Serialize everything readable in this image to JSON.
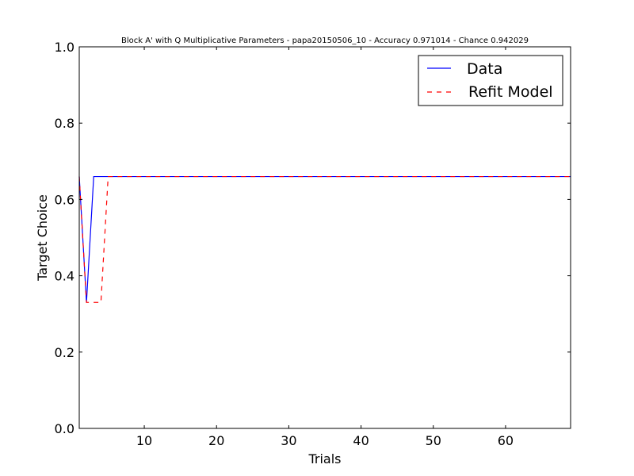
{
  "chart_data": {
    "type": "line",
    "title": "Block A' with Q Multiplicative Parameters - papa20150506_10 - Accuracy 0.971014 - Chance 0.942029",
    "xlabel": "Trials",
    "ylabel": "Target Choice",
    "xlim": [
      1,
      69
    ],
    "ylim": [
      0.0,
      1.0
    ],
    "x_ticks": [
      10,
      20,
      30,
      40,
      50,
      60
    ],
    "x_tick_labels": [
      "10",
      "20",
      "30",
      "40",
      "50",
      "60"
    ],
    "y_ticks": [
      0.0,
      0.2,
      0.4,
      0.6,
      0.8,
      1.0
    ],
    "y_tick_labels": [
      "0.0",
      "0.2",
      "0.4",
      "0.6",
      "0.8",
      "1.0"
    ],
    "grid": false,
    "legend_position": "top-right",
    "series": [
      {
        "name": "Data",
        "color": "#0000ff",
        "style": "solid",
        "x": [
          1,
          2,
          3,
          69
        ],
        "values": [
          0.66,
          0.33,
          0.66,
          0.66
        ]
      },
      {
        "name": "Refit Model",
        "color": "#ff0000",
        "style": "dashed",
        "x": [
          1,
          2,
          3,
          4,
          5,
          69
        ],
        "values": [
          0.66,
          0.33,
          0.33,
          0.33,
          0.66,
          0.66
        ]
      }
    ]
  }
}
